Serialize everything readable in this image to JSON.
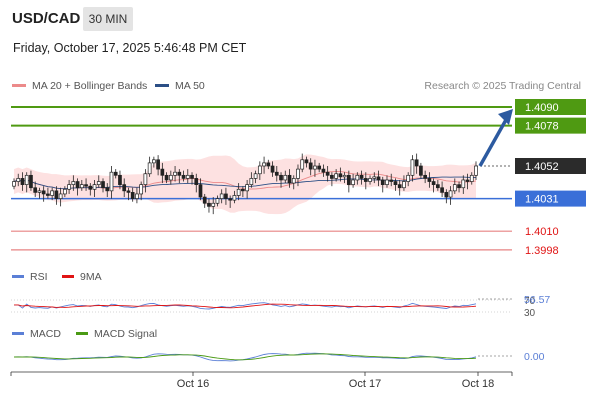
{
  "header": {
    "pair": "USD/CAD",
    "timeframe": "30 MIN",
    "datetime": "Friday, October 17, 2025 5:46:48 PM CET"
  },
  "legend": {
    "ma20_bb": "MA 20 + Bollinger Bands",
    "ma50": "MA 50",
    "rsi": "RSI",
    "rsi_ma": "9MA",
    "macd": "MACD",
    "macd_signal": "MACD Signal"
  },
  "credit": "Research © 2025 Trading Central",
  "colors": {
    "resistance": "#4f9a12",
    "current": "#2b2b2b",
    "pivot": "#3a6fd8",
    "support": "#e05a5a",
    "arrow": "#2c5aa0",
    "bb_fill": "#fde1e1",
    "ma20": "#ec8a8a",
    "ma50": "#2c4f86",
    "rsi": "#5b7fd6",
    "rsi_ma": "#e01414",
    "macd": "#5b7fd6",
    "macd_signal": "#4a9a14"
  },
  "chart_data": {
    "type": "candlestick",
    "x_ticks": [
      "Oct 16",
      "Oct 17",
      "Oct 18"
    ],
    "ylim": [
      1.3985,
      1.41
    ],
    "levels": [
      {
        "value": 1.409,
        "label": "1.4090",
        "kind": "resistance"
      },
      {
        "value": 1.4078,
        "label": "1.4078",
        "kind": "resistance"
      },
      {
        "value": 1.4052,
        "label": "1.4052",
        "kind": "current"
      },
      {
        "value": 1.4031,
        "label": "1.4031",
        "kind": "pivot"
      },
      {
        "value": 1.401,
        "label": "1.4010",
        "kind": "support"
      },
      {
        "value": 1.3998,
        "label": "1.3998",
        "kind": "support"
      }
    ],
    "closes": [
      1.4042,
      1.4044,
      1.404,
      1.4046,
      1.4038,
      1.4035,
      1.4036,
      1.4034,
      1.4033,
      1.4036,
      1.4031,
      1.4034,
      1.4037,
      1.404,
      1.4042,
      1.4038,
      1.404,
      1.4039,
      1.4037,
      1.404,
      1.4042,
      1.4038,
      1.4036,
      1.4048,
      1.4046,
      1.404,
      1.4036,
      1.4035,
      1.4031,
      1.4034,
      1.404,
      1.4047,
      1.4054,
      1.4056,
      1.405,
      1.4046,
      1.4043,
      1.4046,
      1.4048,
      1.4046,
      1.4044,
      1.4046,
      1.4044,
      1.404,
      1.4032,
      1.4028,
      1.4026,
      1.4028,
      1.4031,
      1.4034,
      1.4031,
      1.403,
      1.4033,
      1.4037,
      1.4036,
      1.404,
      1.4044,
      1.4047,
      1.4052,
      1.4054,
      1.4052,
      1.4048,
      1.4046,
      1.4043,
      1.4046,
      1.4041,
      1.4044,
      1.405,
      1.4056,
      1.4054,
      1.405,
      1.4052,
      1.405,
      1.4048,
      1.4046,
      1.4044,
      1.4047,
      1.4045,
      1.4046,
      1.404,
      1.4043,
      1.4046,
      1.4044,
      1.4042,
      1.4044,
      1.4045,
      1.4043,
      1.404,
      1.4043,
      1.4042,
      1.404,
      1.4038,
      1.4042,
      1.4046,
      1.4056,
      1.4052,
      1.4046,
      1.4044,
      1.4042,
      1.404,
      1.4038,
      1.4035,
      1.4032,
      1.4036,
      1.404,
      1.4038,
      1.4043,
      1.4042,
      1.4046,
      1.4052
    ],
    "rsi": {
      "ticks": [
        70,
        30
      ],
      "last_value": "56.57"
    },
    "macd": {
      "last_value": "0.00"
    }
  }
}
